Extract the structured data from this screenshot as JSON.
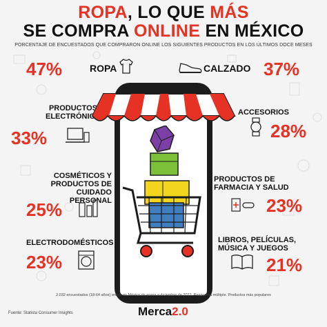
{
  "title": {
    "line1_a": "ROPA",
    "line1_b": ", LO QUE ",
    "line1_c": "MÁS",
    "line2_a": "SE COMPRA ",
    "line2_b": "ONLINE",
    "line2_c": " EN MÉXICO"
  },
  "subtitle": "PORCENTAJE DE ENCUESTADOS QUE COMPRARON ONLINE LOS SIGUIENTES PRODUCTOS EN LOS ÚLTIMOS DOCE MESES",
  "chart_data": {
    "type": "table",
    "categories": [
      "ROPA",
      "CALZADO",
      "PRODUCTOS ELECTRÓNICOS",
      "ACCESORIOS",
      "COSMÉTICOS Y PRODUCTOS DE CUIDADO PERSONAL",
      "PRODUCTOS DE FARMACIA Y SALUD",
      "ELECTRODOMÉSTICOS",
      "LIBROS, PELÍCULAS, MÚSICA Y JUEGOS"
    ],
    "values": [
      47,
      37,
      33,
      28,
      25,
      23,
      23,
      21
    ],
    "unit": "%"
  },
  "items": {
    "ropa": {
      "label": "ROPA",
      "pct": "47%"
    },
    "calzado": {
      "label": "CALZADO",
      "pct": "37%"
    },
    "electronicos": {
      "label1": "PRODUCTOS",
      "label2": "ELECTRÓNICOS",
      "pct": "33%"
    },
    "accesorios": {
      "label": "ACCESORIOS",
      "pct": "28%"
    },
    "cosmeticos": {
      "label1": "COSMÉTICOS Y",
      "label2": "PRODUCTOS DE",
      "label3": "CUIDADO PERSONAL",
      "pct": "25%"
    },
    "farmacia": {
      "label1": "PRODUCTOS DE",
      "label2": "FARMACIA Y SALUD",
      "pct": "23%"
    },
    "electrodomesticos": {
      "label": "ELECTRODOMÉSTICOS",
      "pct": "23%"
    },
    "libros": {
      "label1": "LIBROS, PELÍCULAS,",
      "label2": "MÚSICA Y JUEGOS",
      "pct": "21%"
    }
  },
  "footer_note": "2.032 encuestados (18-64 años) online en México de enero a diciembre de 2022. Respuesta múltiple. Productos más populares",
  "source": "Fuente: Statista Consumer Insights",
  "logo": {
    "a": "Merca",
    "b": "2.0"
  },
  "colors": {
    "accent": "#e53224",
    "dark": "#1c1c1c",
    "green": "#7dc13a",
    "yellow": "#f2d61e",
    "blue": "#3f7fc0",
    "purple": "#7b3fa6"
  }
}
